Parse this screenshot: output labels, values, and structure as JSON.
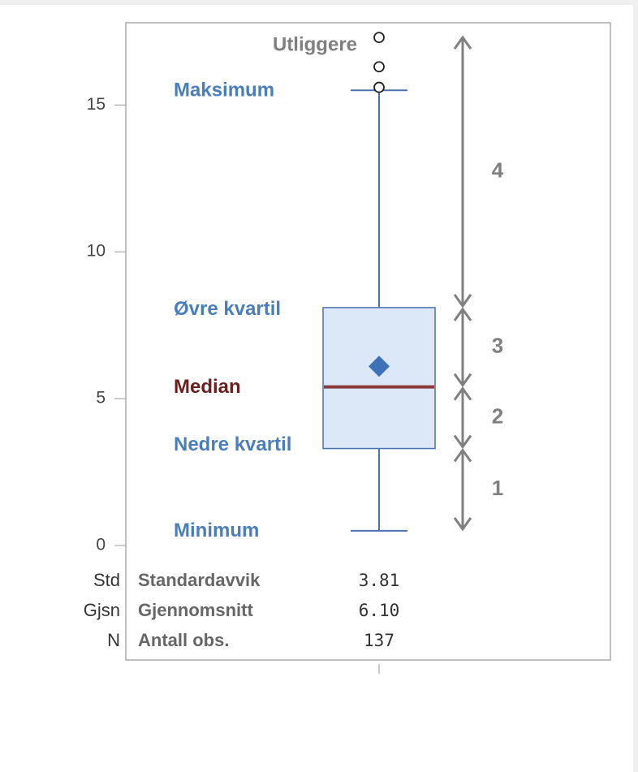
{
  "chart_data": {
    "type": "box",
    "ylim": [
      -3.9,
      17.8
    ],
    "yticks": [
      0,
      5,
      10,
      15
    ],
    "min": 0.5,
    "q1": 3.3,
    "median": 5.4,
    "q3": 8.1,
    "max": 15.5,
    "mean": 6.1,
    "outliers": [
      15.6,
      16.3,
      17.3
    ],
    "box_color": "#4a72b0",
    "box_fill": "#dce8f8",
    "median_color": "#8b3a3a",
    "annotations": {
      "outliers": "Utliggere",
      "max": "Maksimum",
      "q3": "Øvre kvartil",
      "median": "Median",
      "q1": "Nedre kvartil",
      "min": "Minimum"
    },
    "intervals": [
      "1",
      "2",
      "3",
      "4"
    ],
    "stats": [
      {
        "abbr": "Std",
        "name": "Standardavvik",
        "value": "3.81"
      },
      {
        "abbr": "Gjsn",
        "name": "Gjennomsnitt",
        "value": "6.10"
      },
      {
        "abbr": "N",
        "name": "Antall obs.",
        "value": "137"
      }
    ]
  }
}
